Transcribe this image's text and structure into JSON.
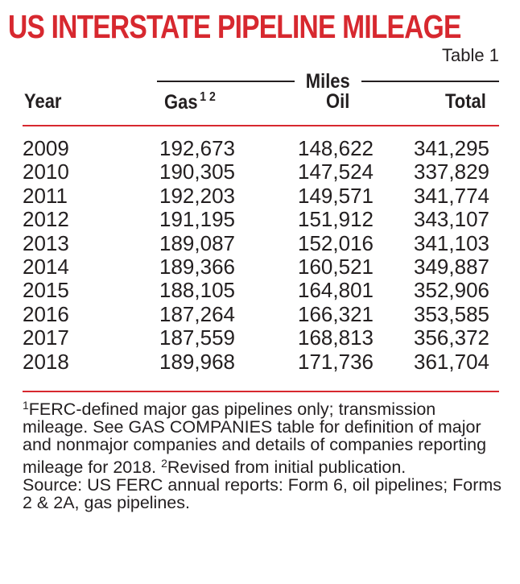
{
  "title": "US INTERSTATE PIPELINE MILEAGE",
  "table_label": "Table 1",
  "group_header": "Miles",
  "columns": {
    "year": "Year",
    "gas": "Gas",
    "gas_sup": "1 2",
    "oil": "Oil",
    "total": "Total"
  },
  "rows": [
    {
      "year": "2009",
      "gas": "192,673",
      "oil": "148,622",
      "total": "341,295"
    },
    {
      "year": "2010",
      "gas": "190,305",
      "oil": "147,524",
      "total": "337,829"
    },
    {
      "year": "2011",
      "gas": "192,203",
      "oil": "149,571",
      "total": "341,774"
    },
    {
      "year": "2012",
      "gas": "191,195",
      "oil": "151,912",
      "total": "343,107"
    },
    {
      "year": "2013",
      "gas": "189,087",
      "oil": "152,016",
      "total": "341,103"
    },
    {
      "year": "2014",
      "gas": "189,366",
      "oil": "160,521",
      "total": "349,887"
    },
    {
      "year": "2015",
      "gas": "188,105",
      "oil": "164,801",
      "total": "352,906"
    },
    {
      "year": "2016",
      "gas": "187,264",
      "oil": "166,321",
      "total": "353,585"
    },
    {
      "year": "2017",
      "gas": "187,559",
      "oil": "168,813",
      "total": "356,372"
    },
    {
      "year": "2018",
      "gas": "189,968",
      "oil": "171,736",
      "total": "361,704"
    }
  ],
  "notes": {
    "fn1_mark": "1",
    "fn1_text": "FERC-defined major gas pipelines only; transmission mileage. See GAS COMPANIES table for definition of major and nonmajor companies and details of companies reporting mileage for 2018.",
    "fn2_mark": "2",
    "fn2_text": "Revised from initial publication.",
    "source": "Source:  US FERC annual reports: Form 6, oil pipelines; Forms 2 & 2A, gas pipelines."
  },
  "colors": {
    "accent": "#d7282f",
    "text": "#231f20"
  }
}
